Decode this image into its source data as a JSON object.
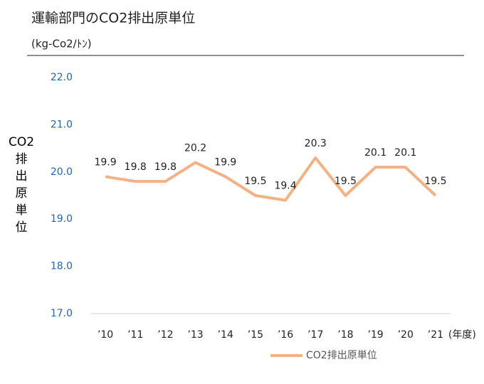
{
  "chart_data": {
    "type": "line",
    "title": "運輸部門のCO2排出原単位",
    "subtitle": "(kg-Co2/ﾄﾝ)",
    "y_label": "CO2排出原単位",
    "x_label": "(年度)",
    "categories": [
      "’10",
      "’11",
      "’12",
      "’13",
      "’14",
      "’15",
      "’16",
      "’17",
      "’18",
      "’19",
      "’20",
      "’21"
    ],
    "series": [
      {
        "name": "CO2排出原単位",
        "color": "#f4b183",
        "values": [
          19.9,
          19.8,
          19.8,
          20.2,
          19.9,
          19.5,
          19.4,
          20.3,
          19.5,
          20.1,
          20.1,
          19.5
        ]
      }
    ],
    "ylim": [
      17.0,
      22.0
    ],
    "yticks": [
      {
        "value": 17,
        "label": "17.0"
      },
      {
        "value": 18,
        "label": "18.0"
      },
      {
        "value": 19,
        "label": "19.0"
      },
      {
        "value": 20,
        "label": "20.0"
      },
      {
        "value": 21,
        "label": "21.0"
      },
      {
        "value": 22,
        "label": "22.0"
      }
    ],
    "ytick_color": "#2464b0",
    "data_labels": true,
    "legend": "bottom"
  }
}
